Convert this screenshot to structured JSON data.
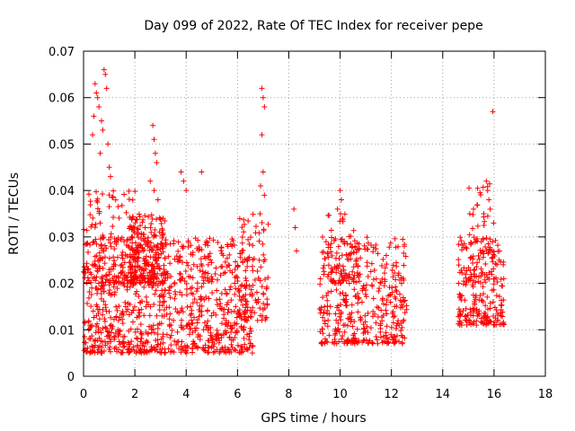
{
  "chart_data": {
    "type": "scatter",
    "title": "Day 099 of 2022, Rate Of TEC Index for receiver pepe",
    "xlabel": "GPS time / hours",
    "ylabel": "ROTI / TECUs",
    "xlim": [
      0,
      18
    ],
    "ylim": [
      0,
      0.07
    ],
    "x_ticks": [
      "0",
      "2",
      "4",
      "6",
      "8",
      "10",
      "12",
      "14",
      "16",
      "18"
    ],
    "y_ticks": [
      "0",
      "0.01",
      "0.02",
      "0.03",
      "0.04",
      "0.05",
      "0.06",
      "0.07"
    ],
    "grid": true,
    "marker": "+",
    "color": "#ff0000",
    "clusters": [
      {
        "x": [
          0.0,
          6.6
        ],
        "y": [
          0.005,
          0.03
        ]
      },
      {
        "x": [
          0.0,
          2.2
        ],
        "y": [
          0.02,
          0.04
        ]
      },
      {
        "x": [
          1.8,
          3.2
        ],
        "y": [
          0.02,
          0.035
        ]
      },
      {
        "x": [
          6.0,
          7.2
        ],
        "y": [
          0.012,
          0.035
        ]
      },
      {
        "x": [
          9.2,
          12.6
        ],
        "y": [
          0.007,
          0.03
        ]
      },
      {
        "x": [
          9.5,
          10.8
        ],
        "y": [
          0.02,
          0.035
        ]
      },
      {
        "x": [
          14.6,
          16.4
        ],
        "y": [
          0.011,
          0.03
        ]
      },
      {
        "x": [
          15.0,
          16.0
        ],
        "y": [
          0.02,
          0.042
        ]
      }
    ],
    "points": [
      [
        0.45,
        0.063
      ],
      [
        0.5,
        0.061
      ],
      [
        0.55,
        0.06
      ],
      [
        0.6,
        0.058
      ],
      [
        0.7,
        0.055
      ],
      [
        0.75,
        0.053
      ],
      [
        0.8,
        0.066
      ],
      [
        0.85,
        0.065
      ],
      [
        0.9,
        0.062
      ],
      [
        0.95,
        0.05
      ],
      [
        1.0,
        0.045
      ],
      [
        1.05,
        0.043
      ],
      [
        0.4,
        0.056
      ],
      [
        0.35,
        0.052
      ],
      [
        0.65,
        0.048
      ],
      [
        2.7,
        0.054
      ],
      [
        2.75,
        0.051
      ],
      [
        2.8,
        0.048
      ],
      [
        2.85,
        0.046
      ],
      [
        2.6,
        0.042
      ],
      [
        2.75,
        0.04
      ],
      [
        2.9,
        0.038
      ],
      [
        3.8,
        0.044
      ],
      [
        3.9,
        0.042
      ],
      [
        4.0,
        0.04
      ],
      [
        4.6,
        0.044
      ],
      [
        6.95,
        0.062
      ],
      [
        7.0,
        0.06
      ],
      [
        7.05,
        0.058
      ],
      [
        6.95,
        0.052
      ],
      [
        7.0,
        0.044
      ],
      [
        6.9,
        0.041
      ],
      [
        7.05,
        0.039
      ],
      [
        6.85,
        0.025
      ],
      [
        8.2,
        0.036
      ],
      [
        8.3,
        0.027
      ],
      [
        8.25,
        0.032
      ],
      [
        10.0,
        0.04
      ],
      [
        10.05,
        0.038
      ],
      [
        9.9,
        0.036
      ],
      [
        10.1,
        0.034
      ],
      [
        15.7,
        0.042
      ],
      [
        15.75,
        0.04
      ],
      [
        15.8,
        0.038
      ],
      [
        15.85,
        0.036
      ],
      [
        15.95,
        0.057
      ],
      [
        15.6,
        0.035
      ],
      [
        15.2,
        0.036
      ],
      [
        6.5,
        0.007
      ],
      [
        0.25,
        0.005
      ],
      [
        2.4,
        0.032
      ],
      [
        3.1,
        0.034
      ],
      [
        12.5,
        0.028
      ],
      [
        11.8,
        0.026
      ],
      [
        12.3,
        0.011
      ]
    ]
  }
}
